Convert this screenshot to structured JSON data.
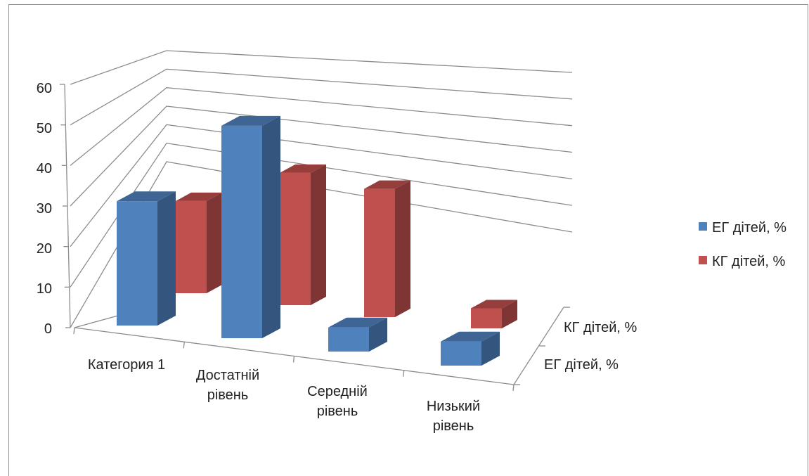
{
  "chart_data": {
    "type": "bar",
    "variant": "3d-clustered-column",
    "categories": [
      "Категория 1",
      "Достатній рівень",
      "Середній рівень",
      "Низький рівень"
    ],
    "series": [
      {
        "name": "ЕГ дітей, %",
        "values": [
          31,
          53,
          6,
          6
        ],
        "color": "#4f81bd"
      },
      {
        "name": "КГ дітей, %",
        "values": [
          23,
          33,
          32,
          5
        ],
        "color": "#c0504d"
      }
    ],
    "ylim": [
      0,
      60
    ],
    "yticks": [
      "0",
      "10",
      "20",
      "30",
      "40",
      "50",
      "60"
    ],
    "depth_axis_labels": [
      "КГ дітей, %",
      "ЕГ дітей, %"
    ],
    "legend": "right",
    "grid": true,
    "title": "",
    "xlabel": "",
    "ylabel": ""
  }
}
